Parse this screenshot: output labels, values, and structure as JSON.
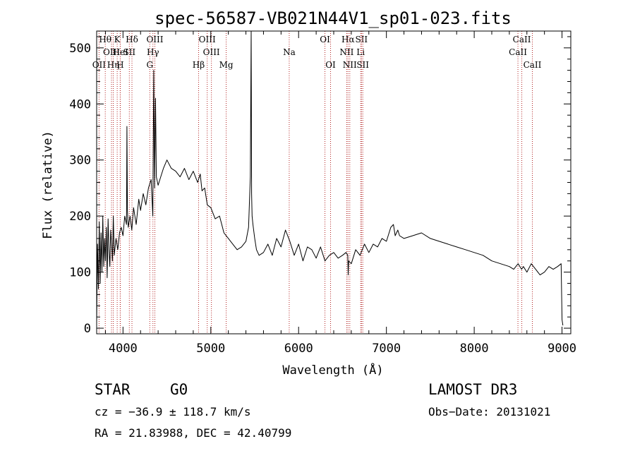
{
  "chart_data": {
    "type": "line",
    "title": "spec-56587-VB021N44V1_sp01-023.fits",
    "xlabel": "Wavelength (Å)",
    "ylabel": "Flux (relative)",
    "xlim": [
      3700,
      9100
    ],
    "ylim": [
      -10,
      530
    ],
    "xticks": [
      4000,
      5000,
      6000,
      7000,
      8000,
      9000
    ],
    "yticks": [
      0,
      100,
      200,
      300,
      400,
      500
    ],
    "series": [
      {
        "name": "flux",
        "x": [
          3700,
          3710,
          3720,
          3730,
          3740,
          3750,
          3760,
          3770,
          3780,
          3790,
          3800,
          3810,
          3820,
          3830,
          3840,
          3850,
          3860,
          3870,
          3880,
          3890,
          3900,
          3920,
          3940,
          3960,
          3980,
          4000,
          4020,
          4040,
          4045,
          4050,
          4060,
          4080,
          4100,
          4120,
          4150,
          4180,
          4200,
          4230,
          4260,
          4290,
          4320,
          4340,
          4350,
          4360,
          4370,
          4380,
          4400,
          4430,
          4460,
          4500,
          4550,
          4600,
          4650,
          4700,
          4750,
          4800,
          4850,
          4880,
          4900,
          4930,
          4960,
          5000,
          5050,
          5100,
          5150,
          5200,
          5250,
          5300,
          5350,
          5400,
          5430,
          5450,
          5460,
          5465,
          5470,
          5480,
          5500,
          5520,
          5550,
          5600,
          5650,
          5700,
          5750,
          5800,
          5850,
          5900,
          5950,
          6000,
          6050,
          6100,
          6150,
          6200,
          6250,
          6300,
          6350,
          6400,
          6450,
          6500,
          6540,
          6560,
          6565,
          6570,
          6600,
          6650,
          6700,
          6750,
          6800,
          6850,
          6900,
          6950,
          7000,
          7050,
          7080,
          7100,
          7130,
          7150,
          7200,
          7300,
          7400,
          7500,
          7600,
          7700,
          7800,
          7900,
          8000,
          8100,
          8200,
          8300,
          8400,
          8450,
          8500,
          8540,
          8560,
          8600,
          8650,
          8700,
          8750,
          8800,
          8850,
          8900,
          8950,
          8990,
          9000,
          9010
        ],
        "values": [
          10,
          150,
          70,
          190,
          80,
          170,
          100,
          200,
          110,
          160,
          120,
          180,
          90,
          195,
          140,
          110,
          175,
          150,
          120,
          200,
          130,
          160,
          140,
          170,
          180,
          165,
          200,
          185,
          360,
          210,
          180,
          200,
          175,
          215,
          185,
          230,
          210,
          240,
          220,
          250,
          265,
          200,
          460,
          250,
          410,
          270,
          255,
          270,
          285,
          300,
          285,
          280,
          270,
          285,
          265,
          280,
          260,
          275,
          245,
          250,
          220,
          215,
          195,
          200,
          170,
          160,
          150,
          140,
          145,
          155,
          180,
          270,
          530,
          240,
          200,
          185,
          160,
          140,
          130,
          135,
          150,
          130,
          160,
          145,
          175,
          155,
          130,
          150,
          120,
          145,
          140,
          125,
          145,
          120,
          130,
          135,
          125,
          130,
          135,
          130,
          95,
          120,
          115,
          140,
          130,
          150,
          135,
          150,
          145,
          160,
          155,
          180,
          185,
          165,
          175,
          165,
          160,
          165,
          170,
          160,
          155,
          150,
          145,
          140,
          135,
          130,
          120,
          115,
          110,
          105,
          115,
          105,
          110,
          100,
          115,
          105,
          95,
          100,
          110,
          105,
          110,
          115,
          15,
          5
        ]
      }
    ],
    "lines": [
      {
        "name": "OII",
        "wave": 3727,
        "row": 2
      },
      {
        "name": "Hθ",
        "wave": 3798,
        "row": 0
      },
      {
        "name": "OIII",
        "wave": 3869,
        "row": 1
      },
      {
        "name": "Hη",
        "wave": 3889,
        "row": 2
      },
      {
        "name": "K",
        "wave": 3934,
        "row": 0
      },
      {
        "name": "HeI",
        "wave": 3970,
        "row": 1
      },
      {
        "name": "H",
        "wave": 3968,
        "row": 2
      },
      {
        "name": "Hδ",
        "wave": 4102,
        "row": 0
      },
      {
        "name": "SII",
        "wave": 4072,
        "row": 1
      },
      {
        "name": "OIII",
        "wave": 4363,
        "row": 0
      },
      {
        "name": "Hγ",
        "wave": 4341,
        "row": 1
      },
      {
        "name": "G",
        "wave": 4305,
        "row": 2
      },
      {
        "name": "OIII",
        "wave": 4959,
        "row": 0
      },
      {
        "name": "OIII",
        "wave": 5007,
        "row": 1
      },
      {
        "name": "Hβ",
        "wave": 4861,
        "row": 2
      },
      {
        "name": "Mg",
        "wave": 5175,
        "row": 2
      },
      {
        "name": "Na",
        "wave": 5893,
        "row": 1
      },
      {
        "name": "OI",
        "wave": 6300,
        "row": 0
      },
      {
        "name": "OI",
        "wave": 6364,
        "row": 2
      },
      {
        "name": "Hα",
        "wave": 6563,
        "row": 0
      },
      {
        "name": "NII",
        "wave": 6548,
        "row": 1
      },
      {
        "name": "NII",
        "wave": 6583,
        "row": 2
      },
      {
        "name": "SII",
        "wave": 6716,
        "row": 0
      },
      {
        "name": "Li",
        "wave": 6707,
        "row": 1
      },
      {
        "name": "SII",
        "wave": 6731,
        "row": 2
      },
      {
        "name": "CaII",
        "wave": 8542,
        "row": 0
      },
      {
        "name": "CaII",
        "wave": 8498,
        "row": 1
      },
      {
        "name": "CaII",
        "wave": 8662,
        "row": 2
      }
    ]
  },
  "info": {
    "class": "STAR",
    "subclass": "G0",
    "survey": "LAMOST DR3",
    "cz": "cz = −36.9 ± 118.7 km/s",
    "obsdate": "Obs−Date: 20131021",
    "radec": "RA =  21.83988, DEC =  42.40799"
  }
}
